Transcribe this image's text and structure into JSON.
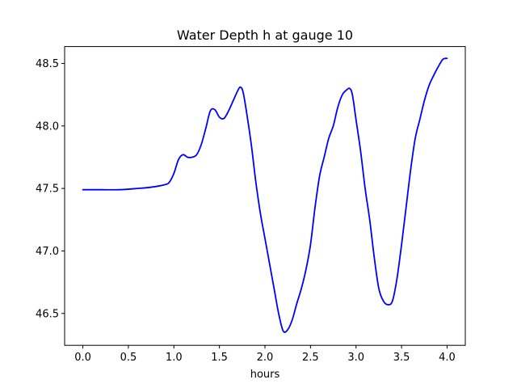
{
  "chart_data": {
    "type": "line",
    "title": "Water Depth h at gauge 10",
    "xlabel": "hours",
    "ylabel": "",
    "xlim": [
      -0.2,
      4.2
    ],
    "ylim": [
      46.245,
      48.635
    ],
    "grid": false,
    "xticks": [
      0.0,
      0.5,
      1.0,
      1.5,
      2.0,
      2.5,
      3.0,
      3.5,
      4.0
    ],
    "xtick_labels": [
      "0.0",
      "0.5",
      "1.0",
      "1.5",
      "2.0",
      "2.5",
      "3.0",
      "3.5",
      "4.0"
    ],
    "yticks": [
      46.5,
      47.0,
      47.5,
      48.0,
      48.5
    ],
    "ytick_labels": [
      "46.5",
      "47.0",
      "47.5",
      "48.0",
      "48.5"
    ],
    "colors": {
      "series": "#0000ff",
      "axes": "#000000",
      "background": "#ffffff"
    },
    "series": [
      {
        "color": "#0000ff",
        "x": [
          0.0,
          0.2,
          0.4,
          0.6,
          0.75,
          0.9,
          0.95,
          1.0,
          1.05,
          1.1,
          1.15,
          1.2,
          1.25,
          1.3,
          1.35,
          1.4,
          1.45,
          1.5,
          1.55,
          1.6,
          1.65,
          1.7,
          1.73,
          1.76,
          1.8,
          1.85,
          1.9,
          1.95,
          2.0,
          2.05,
          2.1,
          2.15,
          2.2,
          2.25,
          2.3,
          2.35,
          2.4,
          2.45,
          2.5,
          2.55,
          2.6,
          2.65,
          2.7,
          2.75,
          2.8,
          2.85,
          2.9,
          2.93,
          2.96,
          3.0,
          3.05,
          3.1,
          3.15,
          3.2,
          3.25,
          3.3,
          3.35,
          3.4,
          3.45,
          3.5,
          3.55,
          3.6,
          3.65,
          3.7,
          3.75,
          3.8,
          3.85,
          3.9,
          3.95,
          3.98,
          4.0
        ],
        "y": [
          47.49,
          47.49,
          47.49,
          47.5,
          47.51,
          47.53,
          47.55,
          47.62,
          47.73,
          47.77,
          47.75,
          47.75,
          47.77,
          47.85,
          47.98,
          48.12,
          48.13,
          48.07,
          48.06,
          48.12,
          48.2,
          48.28,
          48.31,
          48.27,
          48.1,
          47.85,
          47.55,
          47.3,
          47.1,
          46.9,
          46.7,
          46.5,
          46.36,
          46.37,
          46.45,
          46.58,
          46.7,
          46.85,
          47.05,
          47.35,
          47.6,
          47.75,
          47.9,
          48.0,
          48.15,
          48.25,
          48.29,
          48.3,
          48.25,
          48.05,
          47.8,
          47.5,
          47.25,
          46.95,
          46.7,
          46.6,
          46.57,
          46.6,
          46.78,
          47.05,
          47.35,
          47.65,
          47.9,
          48.05,
          48.2,
          48.32,
          48.4,
          48.47,
          48.53,
          48.54,
          48.54
        ]
      }
    ]
  }
}
